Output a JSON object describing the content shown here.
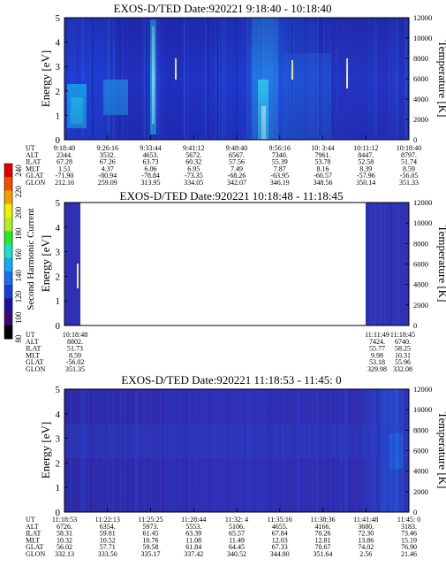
{
  "colorbar": {
    "label": "Second Harmonic Current",
    "ticks": [
      "80",
      "100",
      "120",
      "140",
      "160",
      "180",
      "200",
      "220",
      "240"
    ],
    "colors": [
      "#000000",
      "#3c0a6e",
      "#1f0fa0",
      "#1c3cd6",
      "#1a6ef0",
      "#16a8f0",
      "#1ae0c8",
      "#28e828",
      "#b0f020",
      "#f0f000",
      "#f0a000",
      "#f05000",
      "#e00000"
    ]
  },
  "panels": [
    {
      "title": "EXOS-D/TED   Date:920221  9:18:40 - 10:18:40",
      "ylabel": "Energy [eV]",
      "y2label": "Temperature [K]",
      "yticks": [
        "0",
        "1",
        "2",
        "3",
        "4",
        "5"
      ],
      "y2ticks": [
        "0",
        "2000",
        "4000",
        "6000",
        "8000",
        "10000",
        "12000"
      ],
      "rowlabels": [
        "UT",
        "ALT",
        "ILAT",
        "MLT",
        "GLAT",
        "GLON"
      ],
      "columns": [
        [
          "9:18:40",
          "2344.",
          "67.28",
          "1.51",
          "-71.90",
          "212.16"
        ],
        [
          "9:26:16",
          "3532.",
          "67.26",
          "4.37",
          "-80.94",
          "259.09"
        ],
        [
          "9:33:44",
          "4653.",
          "63.73",
          "6.06",
          "-78.84",
          "313.95"
        ],
        [
          "9:41:12",
          "5672.",
          "60.32",
          "6.95",
          "-73.35",
          "334.05"
        ],
        [
          "9:48:40",
          "6567.",
          "57.56",
          "7.49",
          "-68.26",
          "342.07"
        ],
        [
          "9:56:16",
          "7340.",
          "55.39",
          "7.87",
          "-63.95",
          "346.19"
        ],
        [
          "10: 3:44",
          "7961.",
          "53.78",
          "8.16",
          "-60.57",
          "348.56"
        ],
        [
          "10:11:12",
          "8447.",
          "52.58",
          "8.39",
          "-57.96",
          "350.14"
        ],
        [
          "10:18:40",
          "8797.",
          "51.74",
          "8.59",
          "-56.05",
          "351.33"
        ]
      ]
    },
    {
      "title": "EXOS-D/TED   Date:920221  10:18:48 - 11:18:45",
      "ylabel": "Energy [eV]",
      "y2label": "Temperature [K]",
      "yticks": [
        "0",
        "1",
        "2",
        "3",
        "4",
        "5"
      ],
      "y2ticks": [
        "0",
        "2000",
        "4000",
        "6000",
        "8000",
        "10000",
        "12000"
      ],
      "rowlabels": [
        "UT",
        "ALT",
        "ILAT",
        "MLT",
        "GLAT",
        "GLON"
      ],
      "columns": [
        [
          "10:18:48",
          "8802.",
          "51.73",
          "8.59",
          "-56.02",
          "351.35"
        ],
        [
          "11:11:49",
          "7424.",
          "55.77",
          "9.98",
          "53.18",
          "329.98"
        ],
        [
          "11:18:45",
          "6740.",
          "58.25",
          "10.31",
          "55.96",
          "332.08"
        ]
      ]
    },
    {
      "title": "EXOS-D/TED   Date:920221  11:18:53 - 11:45: 0",
      "ylabel": "Energy [eV]",
      "y2label": "Temperature [K]",
      "yticks": [
        "0",
        "1",
        "2",
        "3",
        "4",
        "5"
      ],
      "y2ticks": [
        "0",
        "2000",
        "4000",
        "6000",
        "8000",
        "10000",
        "12000"
      ],
      "rowlabels": [
        "UT",
        "ALT",
        "ILAT",
        "MLT",
        "GLAT",
        "GLON"
      ],
      "columns": [
        [
          "11:18:53",
          "6726.",
          "58.31",
          "10.32",
          "56.02",
          "332.13"
        ],
        [
          "11:22:13",
          "6354.",
          "59.81",
          "10.52",
          "57.71",
          "333.50"
        ],
        [
          "11:25:25",
          "5973.",
          "61.45",
          "10.76",
          "59.58",
          "335.17"
        ],
        [
          "11:28:44",
          "5553.",
          "63.39",
          "11.08",
          "61.84",
          "337.42"
        ],
        [
          "11:32: 4",
          "5106.",
          "65.57",
          "11.49",
          "64.45",
          "340.52"
        ],
        [
          "11:35:16",
          "4655.",
          "67.84",
          "12.03",
          "67.33",
          "344.80"
        ],
        [
          "11:38:36",
          "4166.",
          "70.26",
          "12.81",
          "70.67",
          "351.64"
        ],
        [
          "11:41:48",
          "3680.",
          "72.30",
          "13.86",
          "74.02",
          "2.56"
        ],
        [
          "11:45: 0",
          "3183.",
          "73.46",
          "15.19",
          "76.90",
          "21.46"
        ]
      ]
    }
  ],
  "chart_data": {
    "type": "heatmap",
    "colorbar_label": "Second Harmonic Current",
    "colorbar_range": [
      80,
      240
    ],
    "panels": [
      {
        "title": "EXOS-D/TED   Date:920221  9:18:40 - 10:18:40",
        "ylabel": "Energy [eV]",
        "y2label": "Temperature [K]",
        "ylim": [
          0,
          5
        ],
        "y2lim": [
          0,
          12000
        ],
        "xlim": [
          "9:18:40",
          "10:18:40"
        ]
      },
      {
        "title": "EXOS-D/TED   Date:920221  10:18:48 - 11:18:45",
        "ylabel": "Energy [eV]",
        "y2label": "Temperature [K]",
        "ylim": [
          0,
          5
        ],
        "y2lim": [
          0,
          12000
        ],
        "xlim": [
          "10:18:48",
          "11:18:45"
        ]
      },
      {
        "title": "EXOS-D/TED   Date:920221  11:18:53 - 11:45: 0",
        "ylabel": "Energy [eV]",
        "y2label": "Temperature [K]",
        "ylim": [
          0,
          5
        ],
        "y2lim": [
          0,
          12000
        ],
        "xlim": [
          "11:18:53",
          "11:45: 0"
        ]
      }
    ]
  }
}
